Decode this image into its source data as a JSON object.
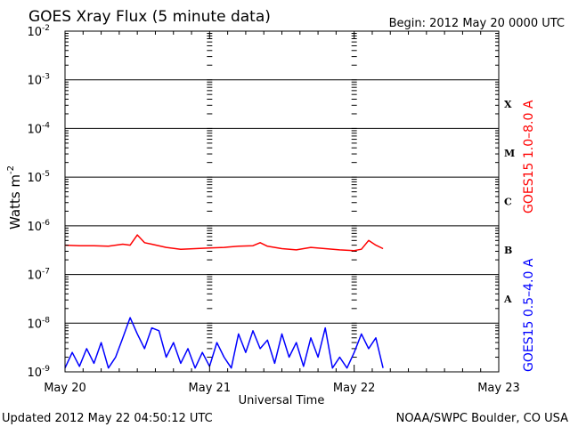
{
  "header": {
    "title": "GOES Xray Flux (5 minute data)",
    "begin": "Begin:  2012 May 20 0000 UTC"
  },
  "footer": {
    "updated": "Updated 2012 May 22 04:50:12 UTC",
    "source": "NOAA/SWPC Boulder, CO USA"
  },
  "chart_data": {
    "type": "line",
    "yscale": "log",
    "ylim": [
      1e-09,
      0.01
    ],
    "xlim_days": [
      0,
      3
    ],
    "ylabel": "Watts m",
    "ylabel_sup": "-2",
    "xlabel": "Universal Time",
    "x_ticks": [
      "May 20",
      "May 21",
      "May 22",
      "May 23"
    ],
    "y_ticks": [
      {
        "base": "10",
        "exp": "-9"
      },
      {
        "base": "10",
        "exp": "-8"
      },
      {
        "base": "10",
        "exp": "-7"
      },
      {
        "base": "10",
        "exp": "-6"
      },
      {
        "base": "10",
        "exp": "-5"
      },
      {
        "base": "10",
        "exp": "-4"
      },
      {
        "base": "10",
        "exp": "-3"
      },
      {
        "base": "10",
        "exp": "-2"
      }
    ],
    "flare_classes": [
      "A",
      "B",
      "C",
      "M",
      "X"
    ],
    "grid": true,
    "series": [
      {
        "name": "GOES15 1.0–8.0 A",
        "color": "#ff0000",
        "x_days": [
          0.0,
          0.1,
          0.2,
          0.3,
          0.4,
          0.45,
          0.5,
          0.55,
          0.6,
          0.7,
          0.8,
          0.9,
          1.0,
          1.1,
          1.2,
          1.3,
          1.35,
          1.4,
          1.5,
          1.6,
          1.7,
          1.8,
          1.9,
          2.0,
          2.05,
          2.1,
          2.15,
          2.2
        ],
        "values": [
          4e-07,
          3.9e-07,
          3.9e-07,
          3.8e-07,
          4.2e-07,
          4e-07,
          6.5e-07,
          4.5e-07,
          4.2e-07,
          3.6e-07,
          3.3e-07,
          3.4e-07,
          3.5e-07,
          3.6e-07,
          3.8e-07,
          3.9e-07,
          4.5e-07,
          3.8e-07,
          3.4e-07,
          3.2e-07,
          3.6e-07,
          3.4e-07,
          3.2e-07,
          3.1e-07,
          3.3e-07,
          5e-07,
          4e-07,
          3.4e-07
        ]
      },
      {
        "name": "GOES15 0.5–4.0 A",
        "color": "#0000ff",
        "x_days": [
          0.0,
          0.05,
          0.1,
          0.15,
          0.2,
          0.25,
          0.3,
          0.35,
          0.4,
          0.45,
          0.5,
          0.55,
          0.6,
          0.65,
          0.7,
          0.75,
          0.8,
          0.85,
          0.9,
          0.95,
          1.0,
          1.05,
          1.1,
          1.15,
          1.2,
          1.25,
          1.3,
          1.35,
          1.4,
          1.45,
          1.5,
          1.55,
          1.6,
          1.65,
          1.7,
          1.75,
          1.8,
          1.85,
          1.9,
          1.95,
          2.0,
          2.05,
          2.1,
          2.15,
          2.2
        ],
        "values": [
          1.2e-09,
          2.5e-09,
          1.3e-09,
          3e-09,
          1.5e-09,
          4e-09,
          1.2e-09,
          2e-09,
          5e-09,
          1.3e-08,
          6e-09,
          3e-09,
          8e-09,
          7e-09,
          2e-09,
          4e-09,
          1.5e-09,
          3e-09,
          1.2e-09,
          2.5e-09,
          1.3e-09,
          4e-09,
          2e-09,
          1.2e-09,
          6e-09,
          2.5e-09,
          7e-09,
          3e-09,
          4.5e-09,
          1.5e-09,
          6e-09,
          2e-09,
          4e-09,
          1.3e-09,
          5e-09,
          2e-09,
          8e-09,
          1.2e-09,
          2e-09,
          1.2e-09,
          2.5e-09,
          6e-09,
          3e-09,
          5e-09,
          1.2e-09
        ]
      }
    ]
  }
}
